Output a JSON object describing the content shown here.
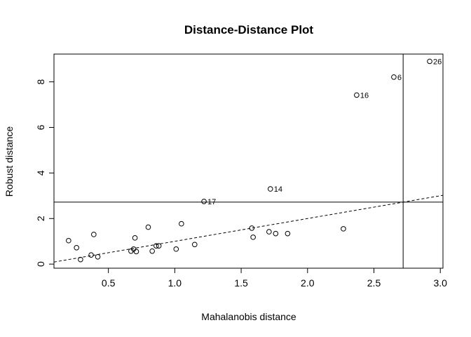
{
  "chart_data": {
    "type": "scatter",
    "title": "Distance-Distance Plot",
    "xlabel": "Mahalanobis distance",
    "ylabel": "Robust distance",
    "xlim": [
      0.09,
      3.02
    ],
    "ylim": [
      -0.18,
      9.22
    ],
    "xticks": [
      0.5,
      1.0,
      1.5,
      2.0,
      2.5,
      3.0
    ],
    "xtick_labels": [
      "0.5",
      "1.0",
      "1.5",
      "2.0",
      "2.5",
      "3.0"
    ],
    "yticks": [
      0,
      2,
      4,
      6,
      8
    ],
    "ytick_labels": [
      "0",
      "2",
      "4",
      "6",
      "8"
    ],
    "y_tick_label_rotation": "vertical",
    "grid": false,
    "points": [
      {
        "x": 0.2,
        "y": 1.03
      },
      {
        "x": 0.26,
        "y": 0.72
      },
      {
        "x": 0.29,
        "y": 0.2
      },
      {
        "x": 0.37,
        "y": 0.4
      },
      {
        "x": 0.39,
        "y": 1.3
      },
      {
        "x": 0.42,
        "y": 0.32
      },
      {
        "x": 0.67,
        "y": 0.57
      },
      {
        "x": 0.69,
        "y": 0.66
      },
      {
        "x": 0.7,
        "y": 1.15
      },
      {
        "x": 0.71,
        "y": 0.55
      },
      {
        "x": 0.8,
        "y": 1.62
      },
      {
        "x": 0.83,
        "y": 0.57
      },
      {
        "x": 0.86,
        "y": 0.8
      },
      {
        "x": 0.88,
        "y": 0.8
      },
      {
        "x": 1.01,
        "y": 0.66
      },
      {
        "x": 1.05,
        "y": 1.77
      },
      {
        "x": 1.15,
        "y": 0.86
      },
      {
        "x": 1.22,
        "y": 2.75,
        "label": "17"
      },
      {
        "x": 1.58,
        "y": 1.58
      },
      {
        "x": 1.59,
        "y": 1.18
      },
      {
        "x": 1.71,
        "y": 1.42
      },
      {
        "x": 1.72,
        "y": 3.3,
        "label": "14"
      },
      {
        "x": 1.76,
        "y": 1.34
      },
      {
        "x": 1.85,
        "y": 1.34
      },
      {
        "x": 2.27,
        "y": 1.55
      },
      {
        "x": 2.37,
        "y": 7.42,
        "label": "16"
      },
      {
        "x": 2.65,
        "y": 8.21,
        "label": "6"
      },
      {
        "x": 2.92,
        "y": 8.9,
        "label": "26"
      }
    ],
    "horizontal_cutoff_y": 2.72,
    "vertical_cutoff_x": 2.72,
    "reference_line": {
      "style": "dashed",
      "slope": 1,
      "intercept": 0
    }
  }
}
